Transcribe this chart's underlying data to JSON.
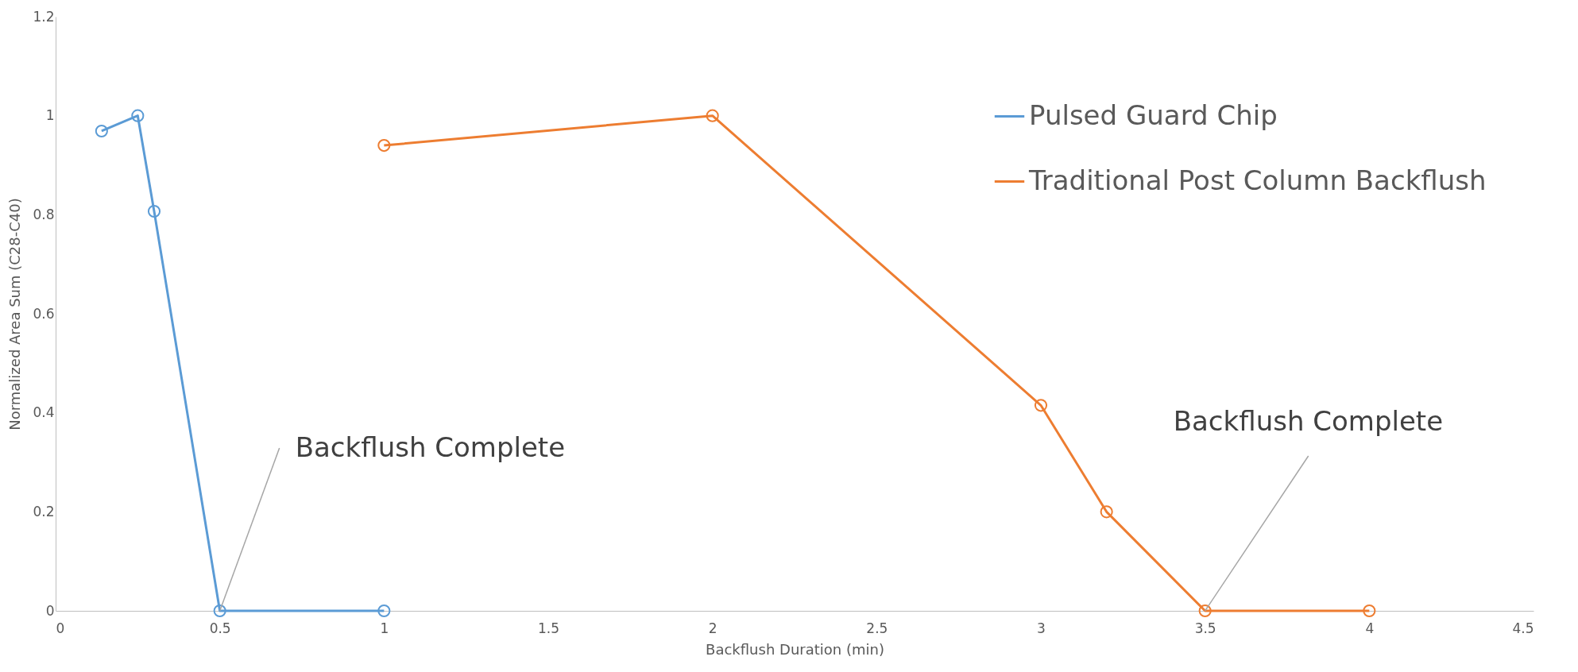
{
  "chart_data": {
    "type": "line",
    "xlabel": "Backflush Duration (min)",
    "ylabel": "Normalized Area Sum (C28-C40)",
    "series": [
      {
        "name": "Pulsed Guard Chip",
        "color": "#5b9bd5",
        "x": [
          0.14,
          0.25,
          0.3,
          0.5,
          1
        ],
        "values": [
          0.969,
          1.0,
          0.807,
          0,
          0
        ]
      },
      {
        "name": "Traditional Post Column Backflush",
        "color": "#ed7d31",
        "x": [
          1,
          2,
          3,
          3.2,
          3.5,
          4
        ],
        "values": [
          0.94,
          1.0,
          0.415,
          0.2,
          0,
          0
        ]
      }
    ],
    "xlim": [
      0,
      4.5
    ],
    "xticks": [
      0,
      0.5,
      1,
      1.5,
      2,
      2.5,
      3,
      3.5,
      4,
      4.5
    ],
    "ylim": [
      0,
      1.2
    ],
    "yticks": [
      0,
      0.2,
      0.4,
      0.6,
      0.8,
      1,
      1.2
    ],
    "annotations": [
      {
        "text": "Backflush Complete",
        "x": 0.5,
        "y": 0
      },
      {
        "text": "Backflush Complete",
        "x": 3.5,
        "y": 0
      }
    ],
    "marker": "circle",
    "line_style": "solid",
    "legend": "top right",
    "grid": false
  }
}
